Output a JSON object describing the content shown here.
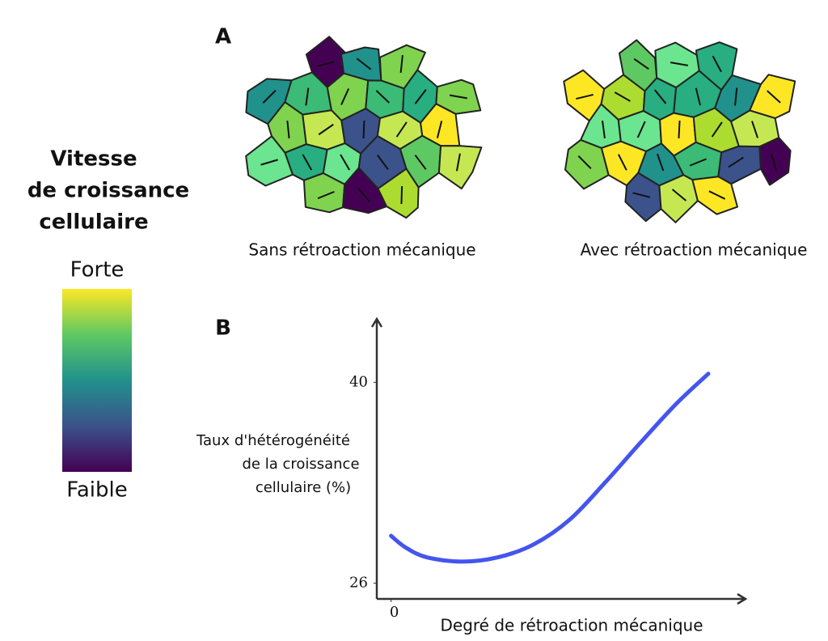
{
  "panel_labels": [
    "A",
    "B"
  ],
  "colorbar": {
    "title": [
      "Vitesse",
      "de croissance",
      "cellulaire"
    ],
    "high": "Forte",
    "low": "Faible"
  },
  "panel_a": {
    "captions": [
      "Sans rétroaction mécanique",
      "Avec rétroaction mécanique"
    ]
  },
  "chart_data": {
    "type": "line",
    "x_label": "Degré de rétroaction mécanique",
    "y_label": [
      "Taux d'hétérogénéité",
      "de la croissance",
      "cellulaire (%)"
    ],
    "x": [
      0,
      0.4,
      1,
      2,
      3,
      4,
      5,
      6,
      7,
      8,
      8.9
    ],
    "series": [
      {
        "color": "#4455ee",
        "values": [
          29.3,
          28.5,
          27.8,
          27.5,
          27.8,
          28.7,
          30.4,
          33.0,
          35.8,
          38.5,
          40.6
        ]
      }
    ],
    "xlim": [
      -0.4,
      9.9
    ],
    "ylim": [
      24.9,
      44.2
    ],
    "xticks": [
      0
    ],
    "yticks": [
      26,
      40
    ]
  }
}
